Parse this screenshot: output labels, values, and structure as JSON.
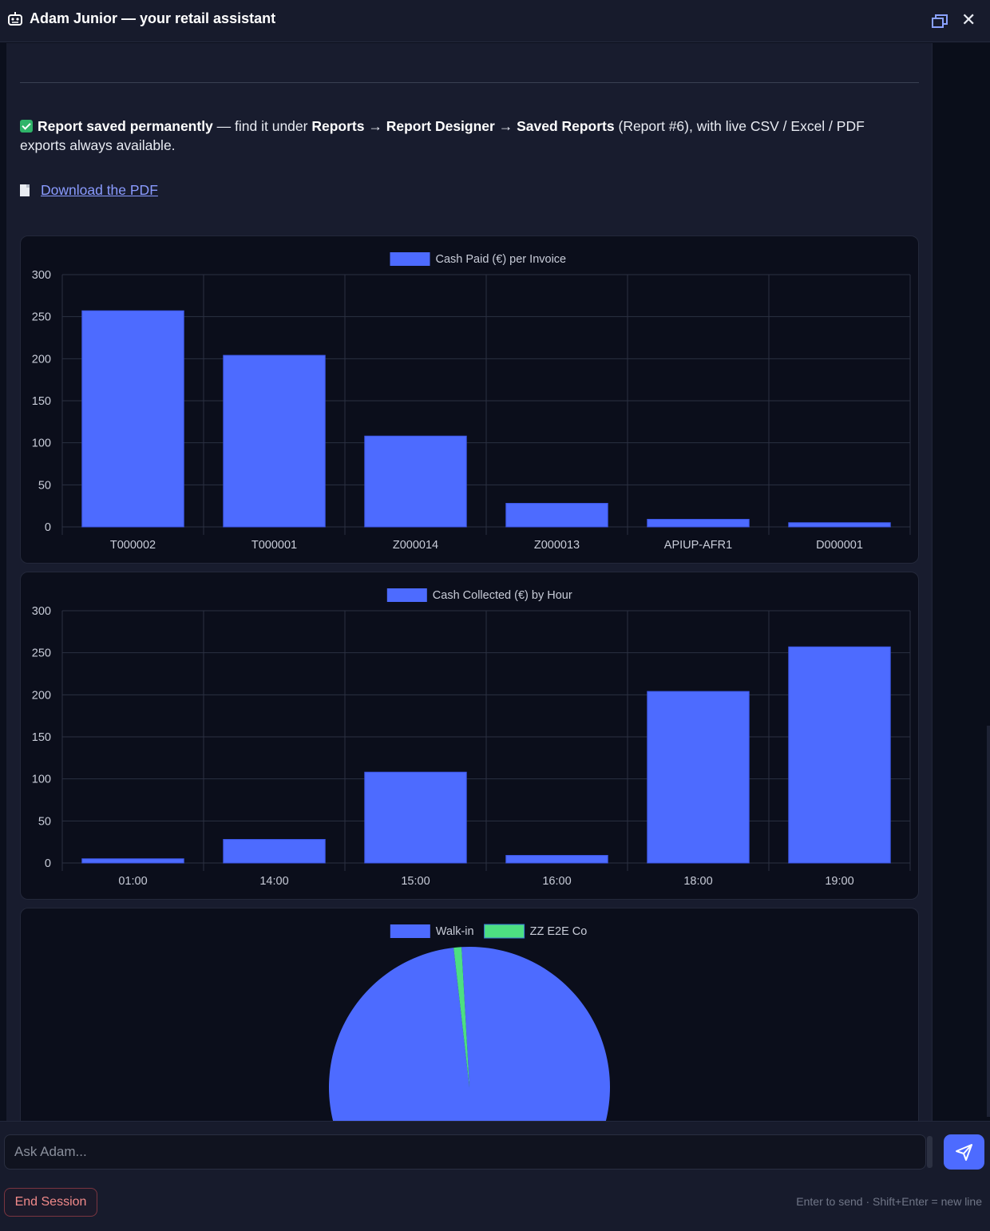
{
  "header": {
    "title": "Adam Junior — your retail assistant"
  },
  "message": {
    "saved_bold": "Report saved permanently",
    "text_1": " — find it under ",
    "reports": "Reports",
    "arrow_1": " → ",
    "designer": "Report Designer",
    "arrow_2": " → ",
    "saved_reports": "Saved Reports",
    "text_2": " (Report #6), with live CSV / Excel / PDF exports always available.",
    "download_link": "Download the PDF"
  },
  "composer": {
    "placeholder": "Ask Adam...",
    "end_session": "End Session",
    "hint": "Enter to send · Shift+Enter = new line"
  },
  "colors": {
    "bar": "#4d6bff",
    "accent_green": "#4ddf82",
    "danger": "#f18a8a"
  },
  "chart_data": [
    {
      "type": "bar",
      "legend": "Cash Paid (€) per Invoice",
      "categories": [
        "T000002",
        "T000001",
        "Z000014",
        "Z000013",
        "APIUP-AFR1",
        "D000001"
      ],
      "values": [
        257,
        204,
        108,
        28,
        9,
        5
      ],
      "ylim": [
        0,
        300
      ],
      "yticks": [
        0,
        50,
        100,
        150,
        200,
        250,
        300
      ],
      "grid": true,
      "legend_position": "top"
    },
    {
      "type": "bar",
      "legend": "Cash Collected (€) by Hour",
      "categories": [
        "01:00",
        "14:00",
        "15:00",
        "16:00",
        "18:00",
        "19:00"
      ],
      "values": [
        5,
        28,
        108,
        9,
        204,
        257
      ],
      "ylim": [
        0,
        300
      ],
      "yticks": [
        0,
        50,
        100,
        150,
        200,
        250,
        300
      ],
      "grid": true,
      "legend_position": "top"
    },
    {
      "type": "pie",
      "labels": [
        "Walk-in",
        "ZZ E2E Co"
      ],
      "values": [
        99.1,
        0.9
      ],
      "colors": [
        "#4d6bff",
        "#4ddf82"
      ],
      "legend_position": "top"
    }
  ]
}
